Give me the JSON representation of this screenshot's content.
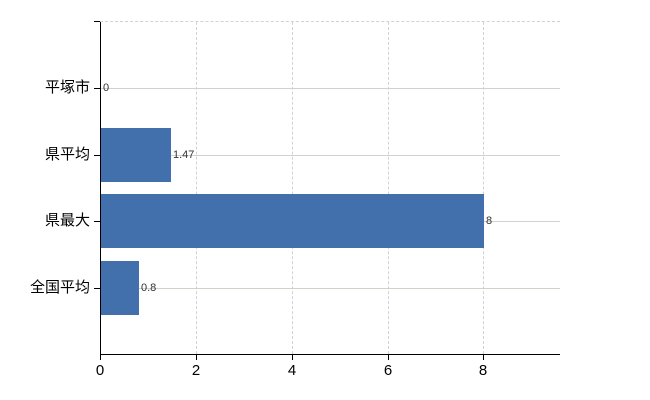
{
  "chart_data": {
    "type": "bar",
    "orientation": "horizontal",
    "title": "",
    "xlabel": "",
    "ylabel": "",
    "categories": [
      "平塚市",
      "県平均",
      "県最大",
      "全国平均"
    ],
    "values": [
      0,
      1.47,
      8,
      0.8
    ],
    "value_labels": [
      "0",
      "1.47",
      "8",
      "0.8"
    ],
    "xlim": [
      0,
      9.6
    ],
    "xticks": [
      0,
      2,
      4,
      6,
      8
    ],
    "xtick_labels": [
      "0",
      "2",
      "4",
      "6",
      "8"
    ],
    "grid": {
      "horizontal_lines": "solid, one per category",
      "vertical_lines": "dashed, at each x tick",
      "top_border": "dashed"
    },
    "legend": null,
    "colors": {
      "bar": "#4170ad",
      "horizontal_gridline": "#cdd5cb",
      "vertical_gridline": "#d2d2d2",
      "axis": "#000000",
      "tick_label": "#000000",
      "category_label": "#000000",
      "value_label": "#333333",
      "background": "#ffffff"
    }
  }
}
